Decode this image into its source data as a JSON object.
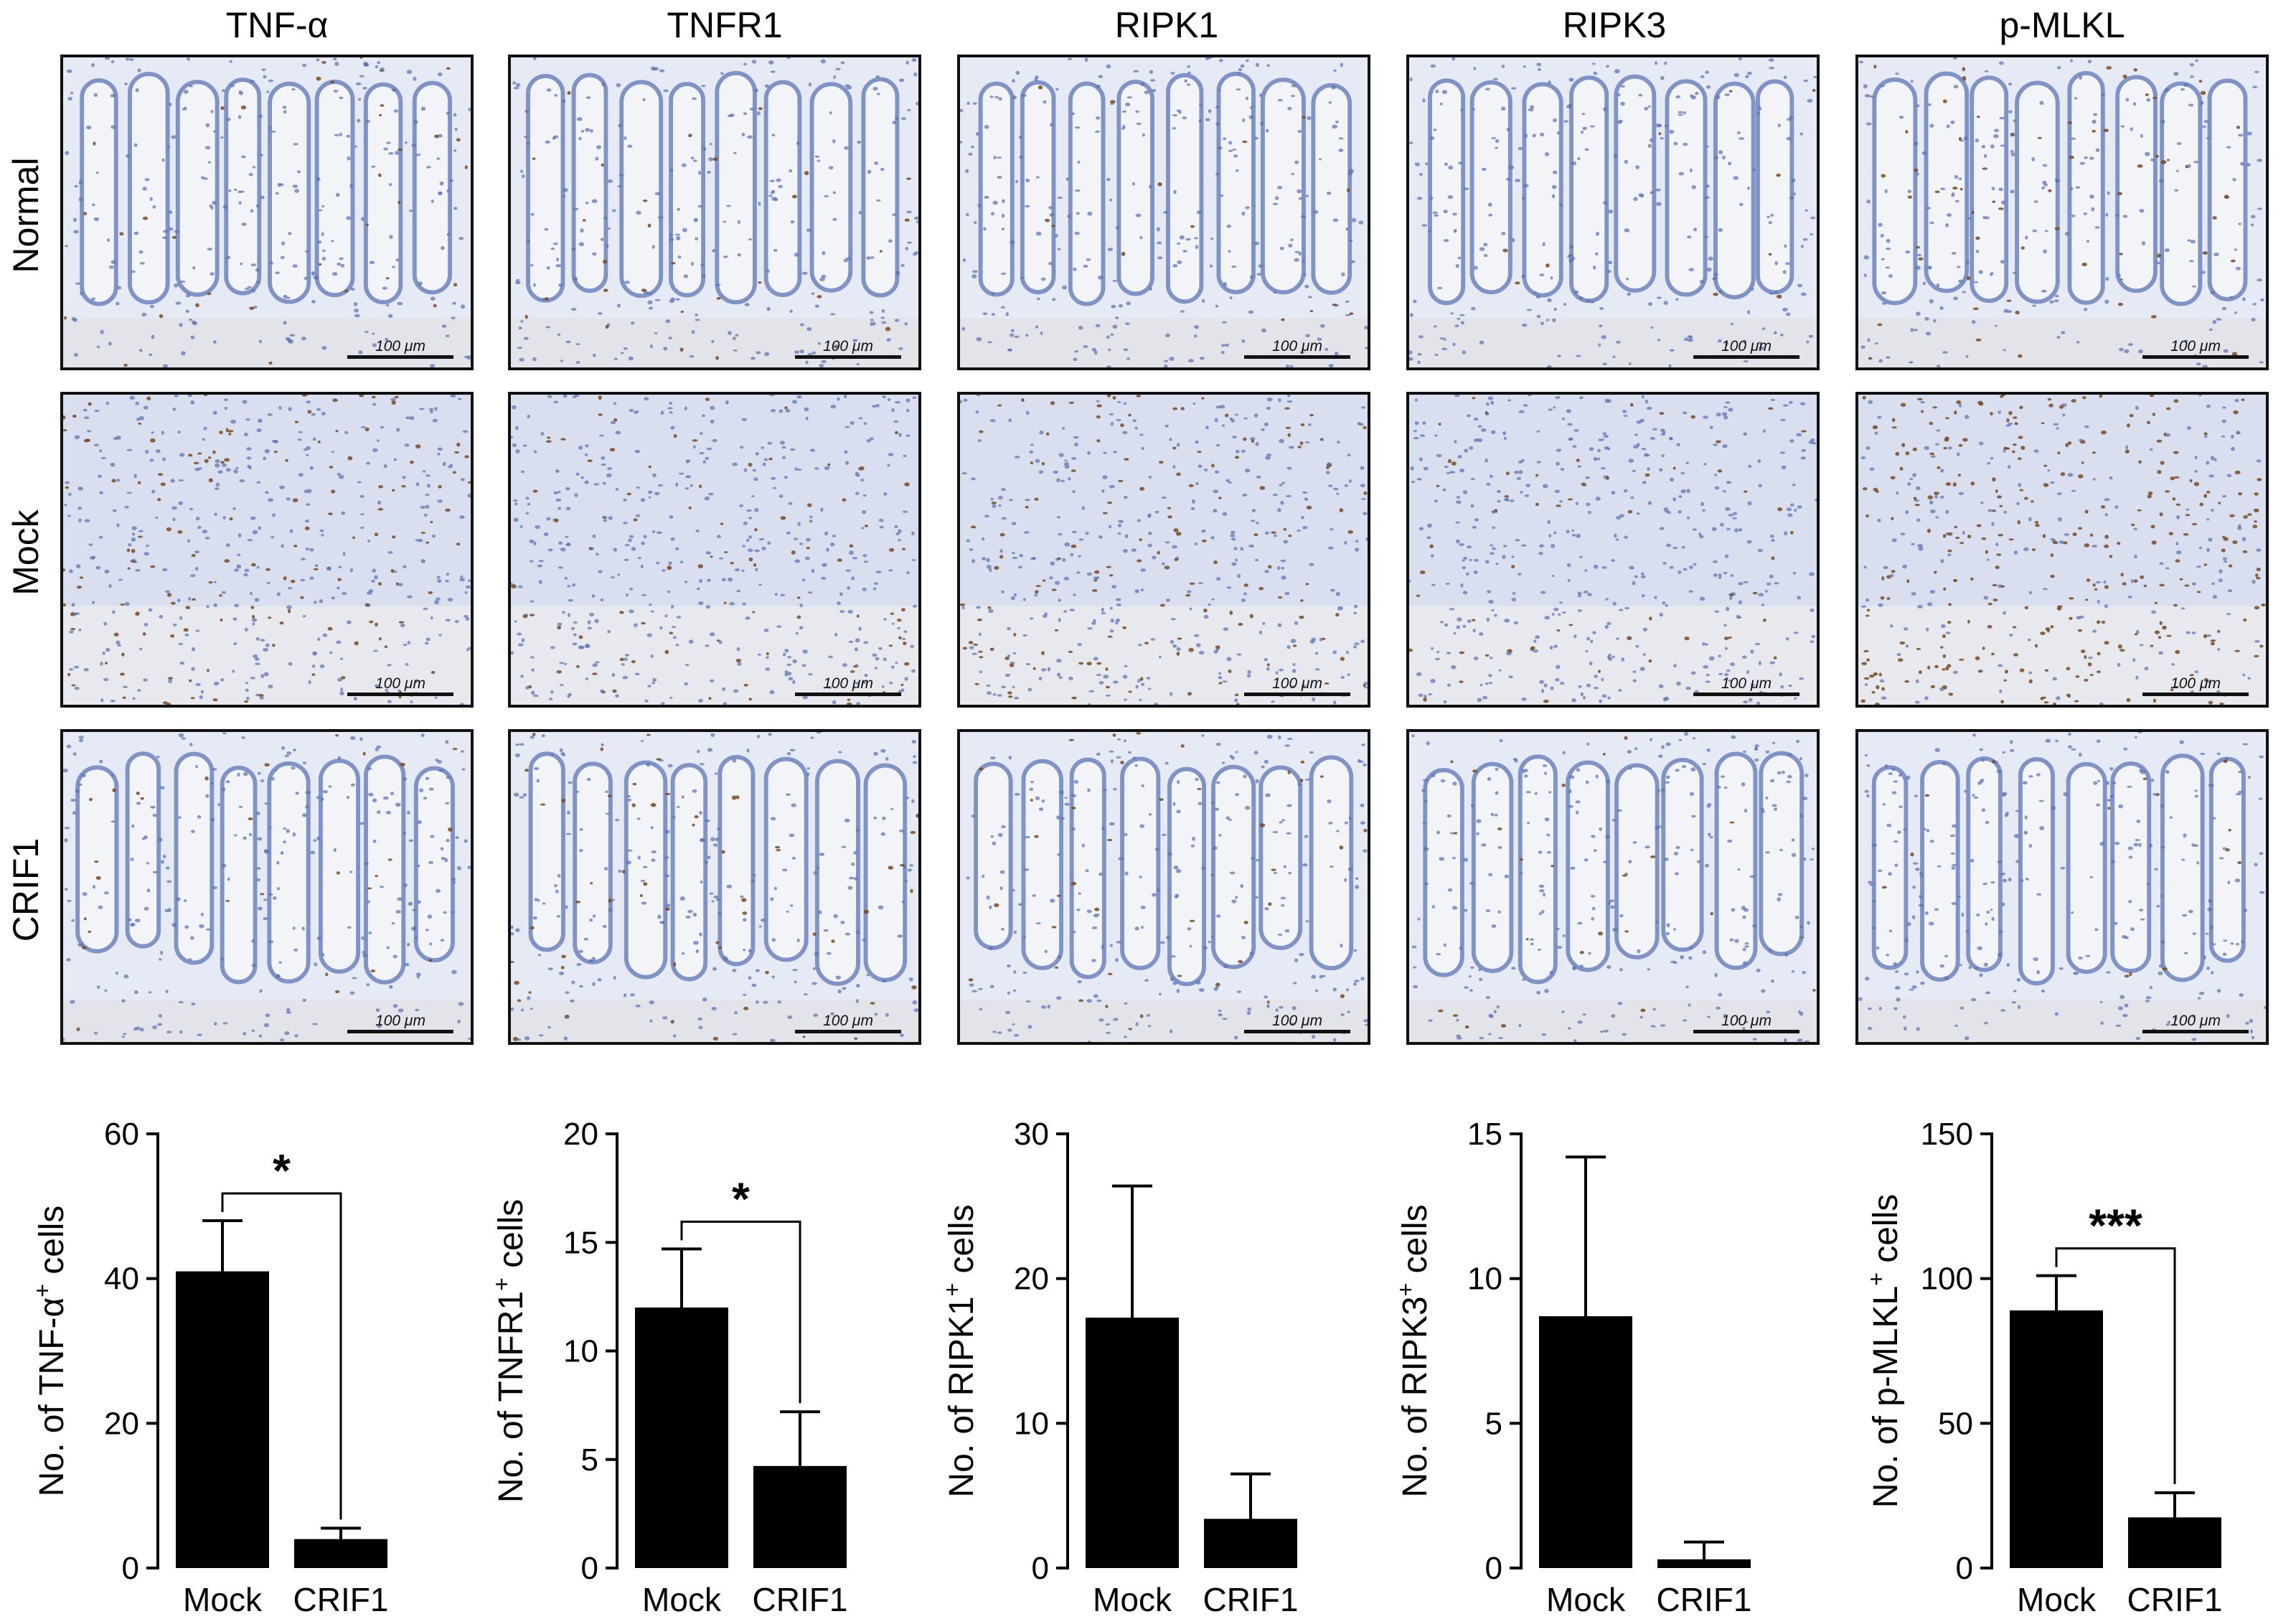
{
  "columns": [
    "TNF-α",
    "TNFR1",
    "RIPK1",
    "RIPK3",
    "p-MLKL"
  ],
  "rows": [
    "Normal",
    "Mock",
    "CRIF1"
  ],
  "scale_bar_label": "100 μm",
  "chart_data": [
    {
      "type": "bar",
      "categories": [
        "Mock",
        "CRIF1"
      ],
      "values": [
        41,
        4
      ],
      "errors": [
        7,
        1.5
      ],
      "ylim": [
        0,
        60
      ],
      "yticks": [
        0,
        20,
        40,
        60
      ],
      "ylabel_main": "No. of TNF-α",
      "ylabel_sup": "+",
      "ylabel_tail": " cells",
      "significance": "*"
    },
    {
      "type": "bar",
      "categories": [
        "Mock",
        "CRIF1"
      ],
      "values": [
        12,
        4.7
      ],
      "errors": [
        2.7,
        2.5
      ],
      "ylim": [
        0,
        20
      ],
      "yticks": [
        0,
        5,
        10,
        15,
        20
      ],
      "ylabel_main": "No. of TNFR1",
      "ylabel_sup": "+",
      "ylabel_tail": " cells",
      "significance": "*"
    },
    {
      "type": "bar",
      "categories": [
        "Mock",
        "CRIF1"
      ],
      "values": [
        17.3,
        3.4
      ],
      "errors": [
        9.1,
        3.1
      ],
      "ylim": [
        0,
        30
      ],
      "yticks": [
        0,
        10,
        20,
        30
      ],
      "ylabel_main": "No. of RIPK1",
      "ylabel_sup": "+",
      "ylabel_tail": " cells",
      "significance": ""
    },
    {
      "type": "bar",
      "categories": [
        "Mock",
        "CRIF1"
      ],
      "values": [
        8.7,
        0.3
      ],
      "errors": [
        5.5,
        0.6
      ],
      "ylim": [
        0,
        15
      ],
      "yticks": [
        0,
        5,
        10,
        15
      ],
      "ylabel_main": "No. of RIPK3",
      "ylabel_sup": "+",
      "ylabel_tail": " cells",
      "significance": ""
    },
    {
      "type": "bar",
      "categories": [
        "Mock",
        "CRIF1"
      ],
      "values": [
        89,
        17.5
      ],
      "errors": [
        12,
        8.5
      ],
      "ylim": [
        0,
        150
      ],
      "yticks": [
        0,
        50,
        100,
        150
      ],
      "ylabel_main": "No. of p-MLKL",
      "ylabel_sup": "+",
      "ylabel_tail": " cells",
      "significance": "***"
    }
  ]
}
